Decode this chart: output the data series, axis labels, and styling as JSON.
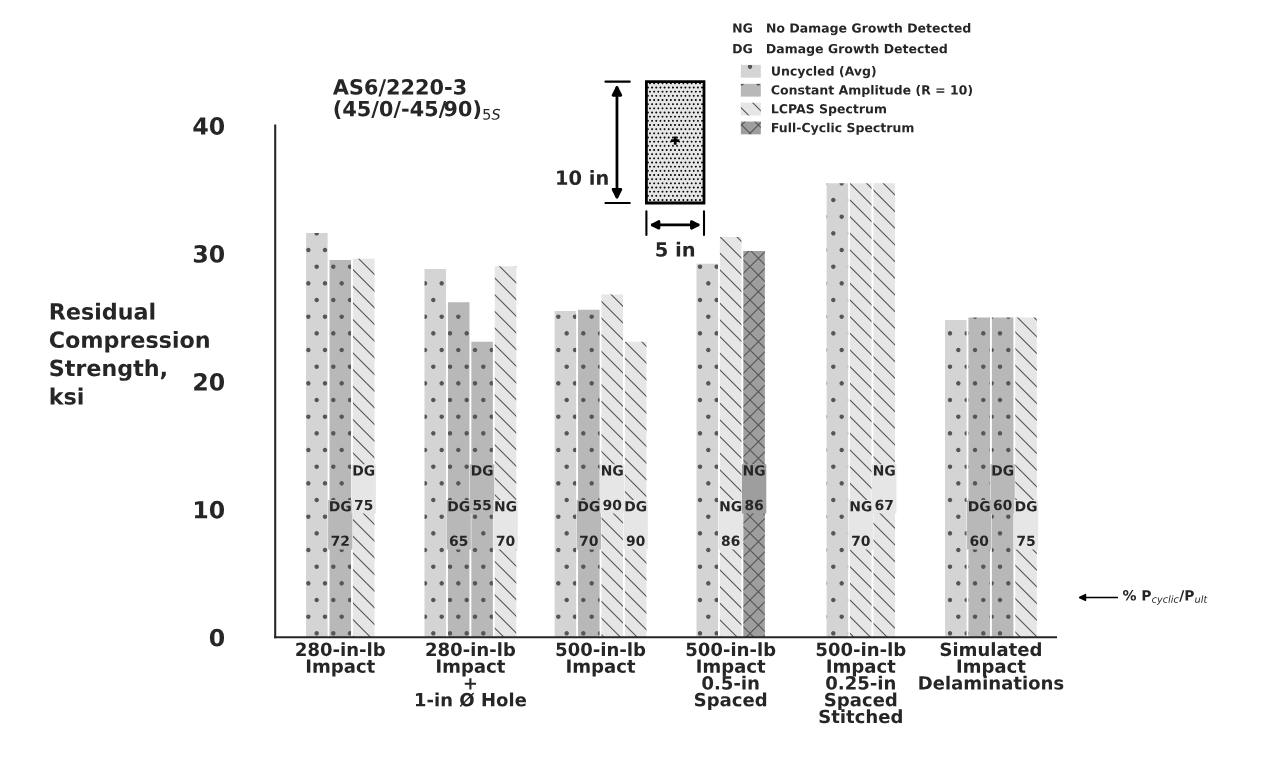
{
  "chart_data": {
    "type": "bar",
    "title": "AS6/2220-3\n(45/0/-45/90)$_{5S}$",
    "ylabel": "Residual\nCompression\nStrength,\nksi",
    "categories": [
      "280-in-lb\nImpact",
      "280-in-lb\nImpact\n+\n1-in Ø Hole",
      "500-in-lb\nImpact",
      "500-in-lb\nImpact\n0.5-in\nSpaced",
      "500-in-lb\nImpact\n0.25-in\nSpaced\nStitched",
      "Simulated\nImpact\nDelaminations"
    ],
    "series": [
      {
        "name": "Uncycled (Avg)",
        "color": "#d4d4d4",
        "values": [
          31.6,
          28.8,
          25.5,
          29.2,
          35.5,
          24.8
        ]
      },
      {
        "name": "Constant Amplitude (R = 10)",
        "color": "#b8b8b8",
        "values": [
          29.5,
          26.2,
          25.6,
          null,
          null,
          25.0
        ],
        "value_labels": [
          "DG\n72",
          "DG\n65",
          "DG\n70",
          null,
          null,
          "DG\n60"
        ]
      },
      {
        "color": "#b8b8b8",
        "values": [
          null,
          23.1,
          null,
          null,
          null,
          25.0
        ],
        "value_labels": [
          null,
          "DG\n55",
          null,
          null,
          null,
          "DG\n60"
        ]
      },
      {
        "name": "LCPAS Spectrum",
        "color": "#e6e6e6",
        "values": [
          29.6,
          29.0,
          26.8,
          31.3,
          35.5,
          25.0
        ],
        "value_labels": [
          "DG\n75",
          "NG\n70",
          "NG\n90",
          "NG\n86",
          "NG\n70",
          "DG\n75"
        ]
      },
      {
        "color": "#e6e6e6",
        "values": [
          null,
          null,
          23.1,
          null,
          35.5,
          null
        ],
        "value_labels": [
          null,
          null,
          "DG\n90",
          null,
          "NG\n67",
          null
        ]
      },
      {
        "name": "Full-Cyclic Spectrum",
        "color": "#9e9e9e",
        "values": [
          null,
          null,
          null,
          30.2,
          null,
          null
        ],
        "value_labels": [
          null,
          null,
          null,
          "NG\n86",
          null,
          null
        ]
      }
    ],
    "ylim": [
      0,
      40
    ],
    "yticks": [
      0,
      10,
      20,
      30,
      40
    ],
    "grid": false,
    "legend": "top right",
    "annotations": [
      "NG   No Damage Growth Detected",
      "DG   Damage Growth Detected",
      "10 in",
      "5 in",
      "% P$_{cyclic}$/P$_{ult}$"
    ]
  }
}
